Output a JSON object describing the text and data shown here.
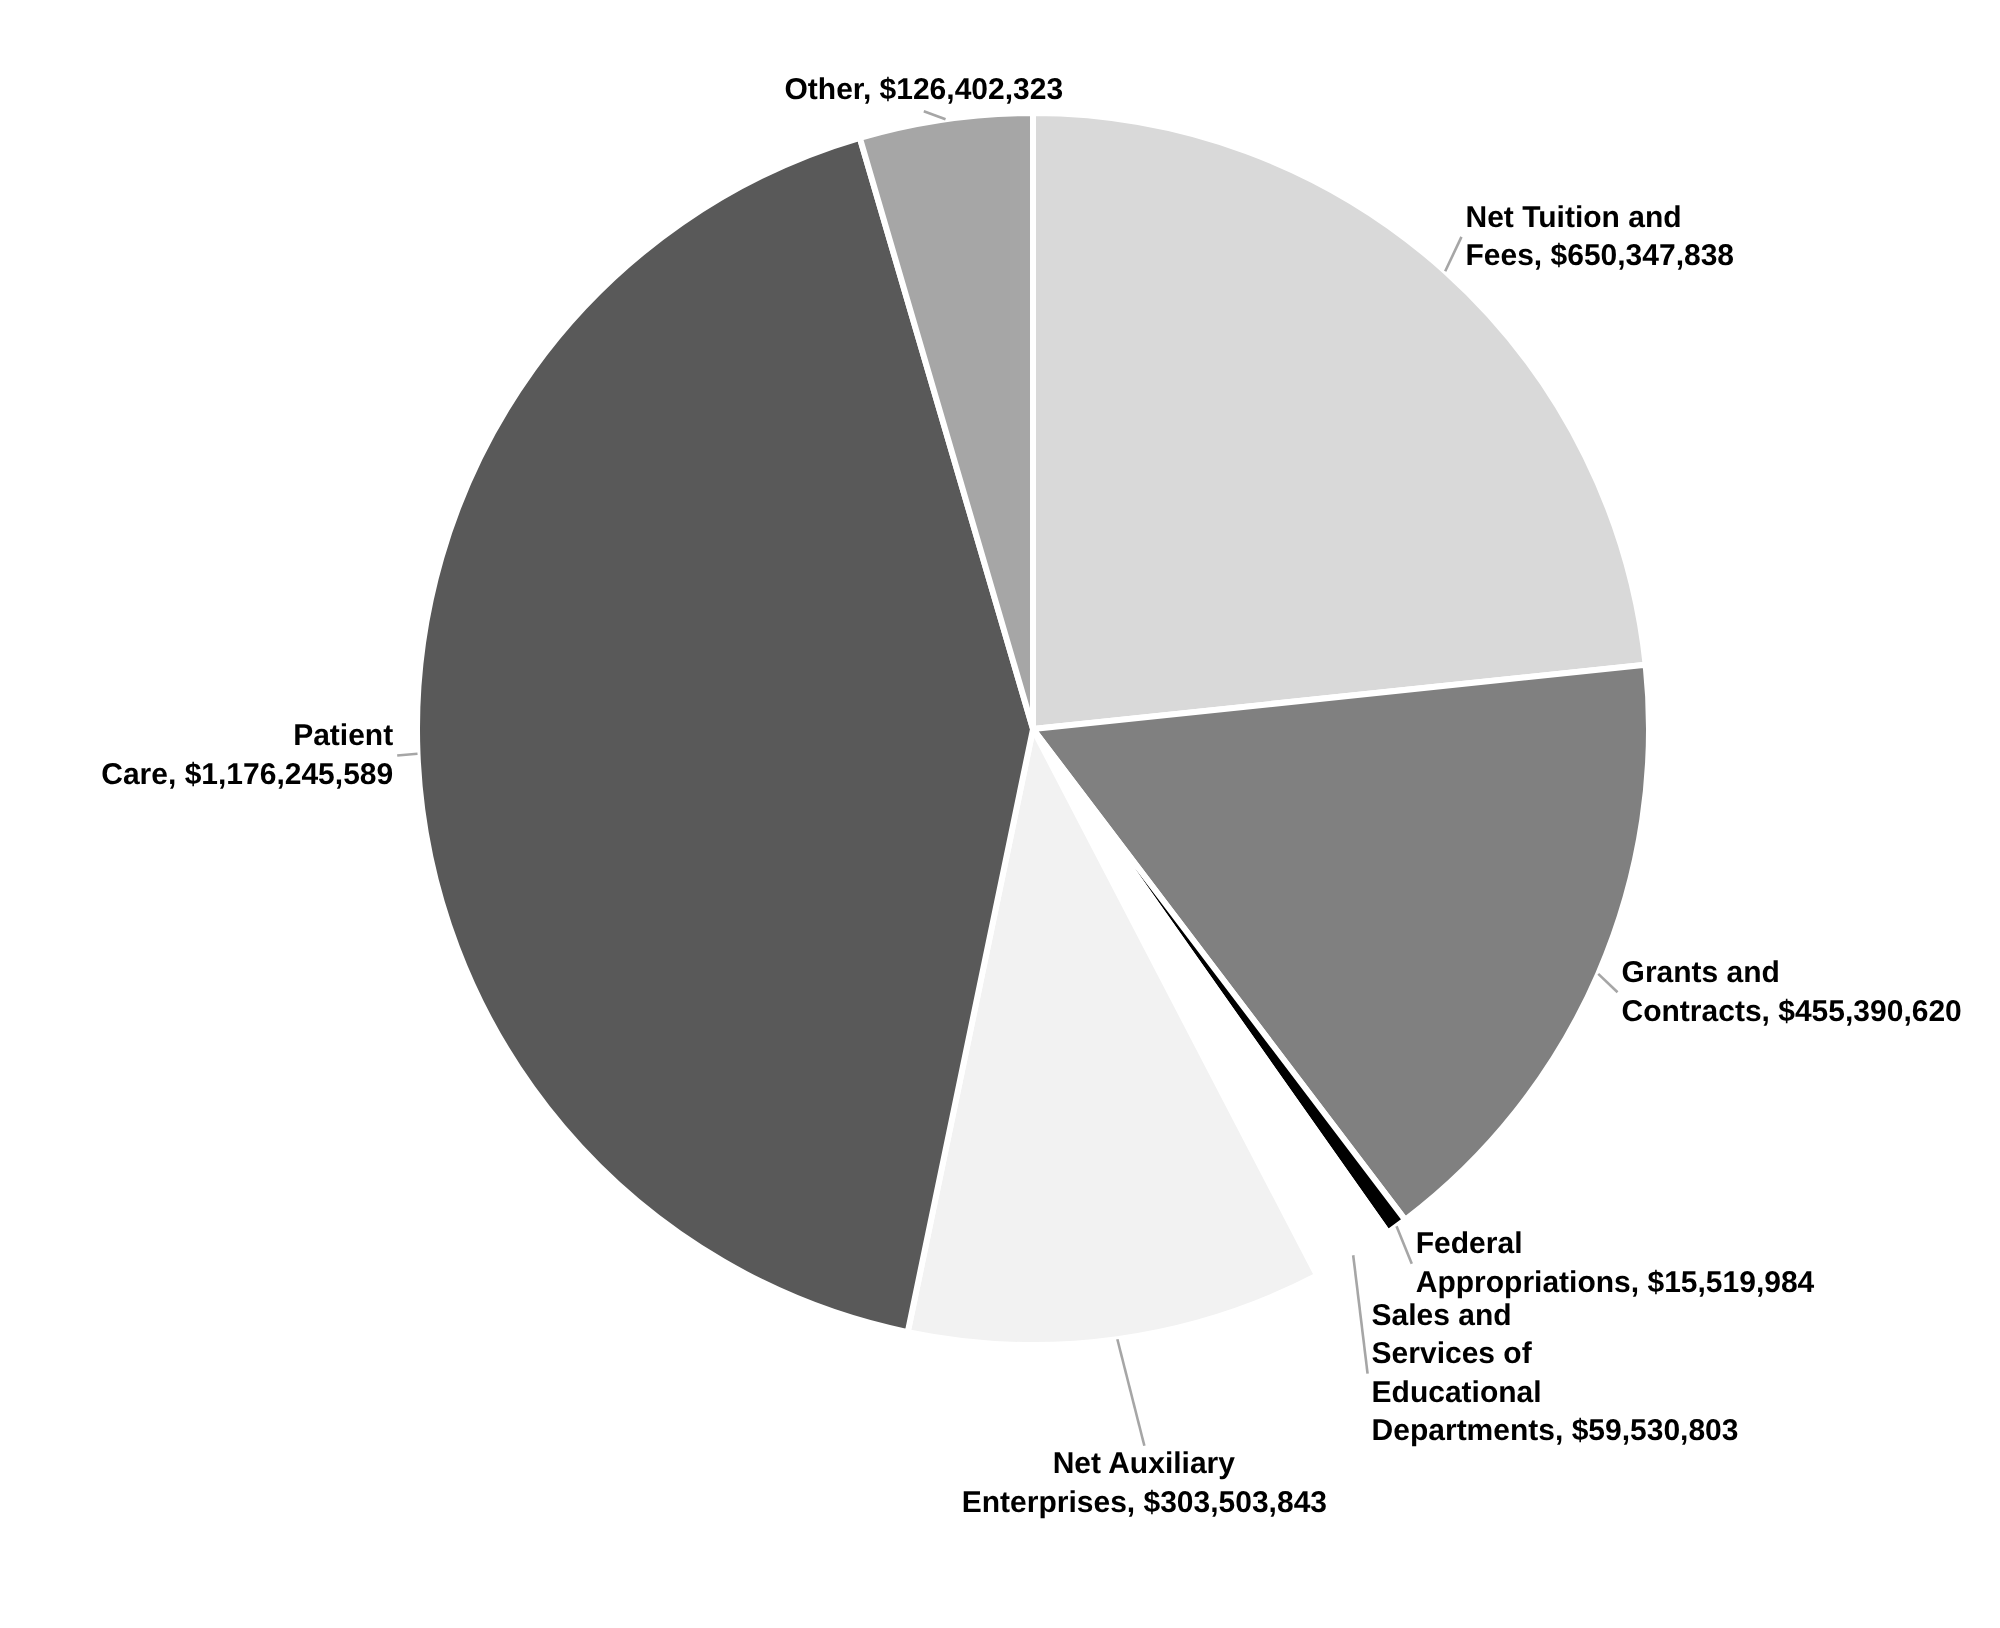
{
  "chart_data": {
    "type": "pie",
    "categories": [
      "Net Tuition and Fees",
      "Grants and Contracts",
      "Federal Appropriations",
      "Sales and Services of Educational Departments",
      "Net Auxiliary Enterprises",
      "Patient Care",
      "Other"
    ],
    "values": [
      650347838,
      455390620,
      15519984,
      59530803,
      303503843,
      1176245589,
      126402323
    ],
    "value_labels": [
      "$650,347,838",
      "$455,390,620",
      "$15,519,984",
      "$59,530,803",
      "$303,503,843",
      "$1,176,245,589",
      "$126,402,323"
    ],
    "colors": [
      "#d9d9d9",
      "#808080",
      "#000000",
      "#ffffff",
      "#f2f2f2",
      "#595959",
      "#a6a6a6"
    ]
  }
}
